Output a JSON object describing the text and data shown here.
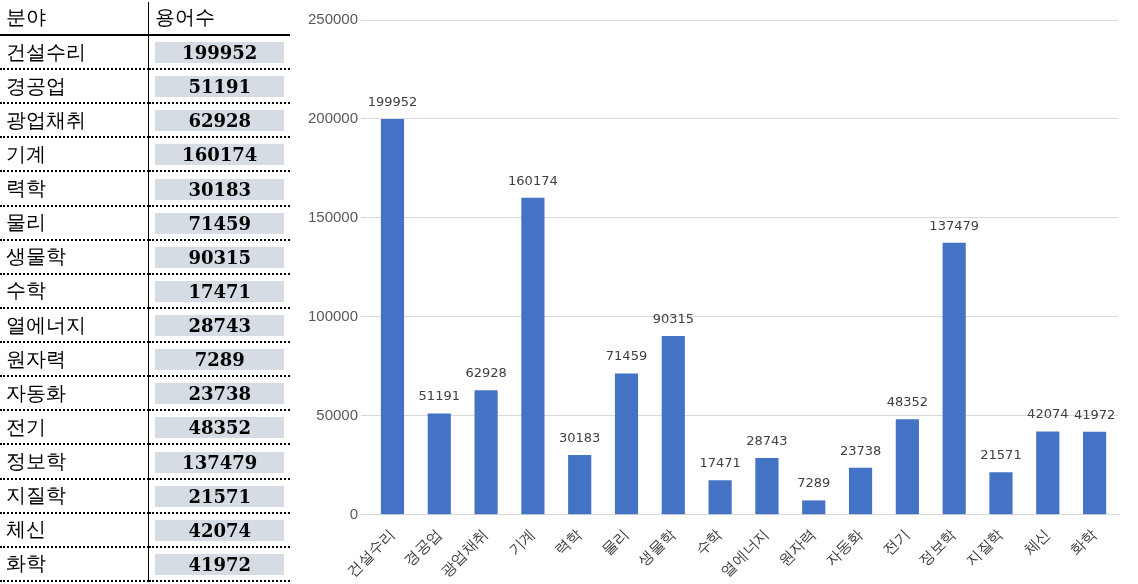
{
  "chart_data": [
    {
      "type": "other",
      "annotations": [
        "분야",
        "용어수"
      ],
      "categories": [
        "건설수리",
        "경공업",
        "광업채취",
        "기계",
        "력학",
        "물리",
        "생물학",
        "수학",
        "열에너지",
        "원자력",
        "자동화",
        "전기",
        "정보학",
        "지질학",
        "체신",
        "화학"
      ],
      "values": [
        199952,
        51191,
        62928,
        160174,
        30183,
        71459,
        90315,
        17471,
        28743,
        7289,
        23738,
        48352,
        137479,
        21571,
        42074,
        41972
      ],
      "data_labels": true
    },
    {
      "type": "bar",
      "categories": [
        "건설수리",
        "경공업",
        "광업채취",
        "기계",
        "력학",
        "물리",
        "생물학",
        "수학",
        "열에너지",
        "원자력",
        "자동화",
        "전기",
        "정보학",
        "지질학",
        "체신",
        "화학"
      ],
      "values": [
        199952,
        51191,
        62928,
        160174,
        30183,
        71459,
        90315,
        17471,
        28743,
        7289,
        23738,
        48352,
        137479,
        21571,
        42074,
        41972
      ],
      "color": "#4472c4",
      "ylim": [
        0,
        250000
      ],
      "yticks": [
        0,
        50000,
        100000,
        150000,
        200000,
        250000
      ],
      "grid": "y",
      "legend": false,
      "data_labels": true
    }
  ]
}
